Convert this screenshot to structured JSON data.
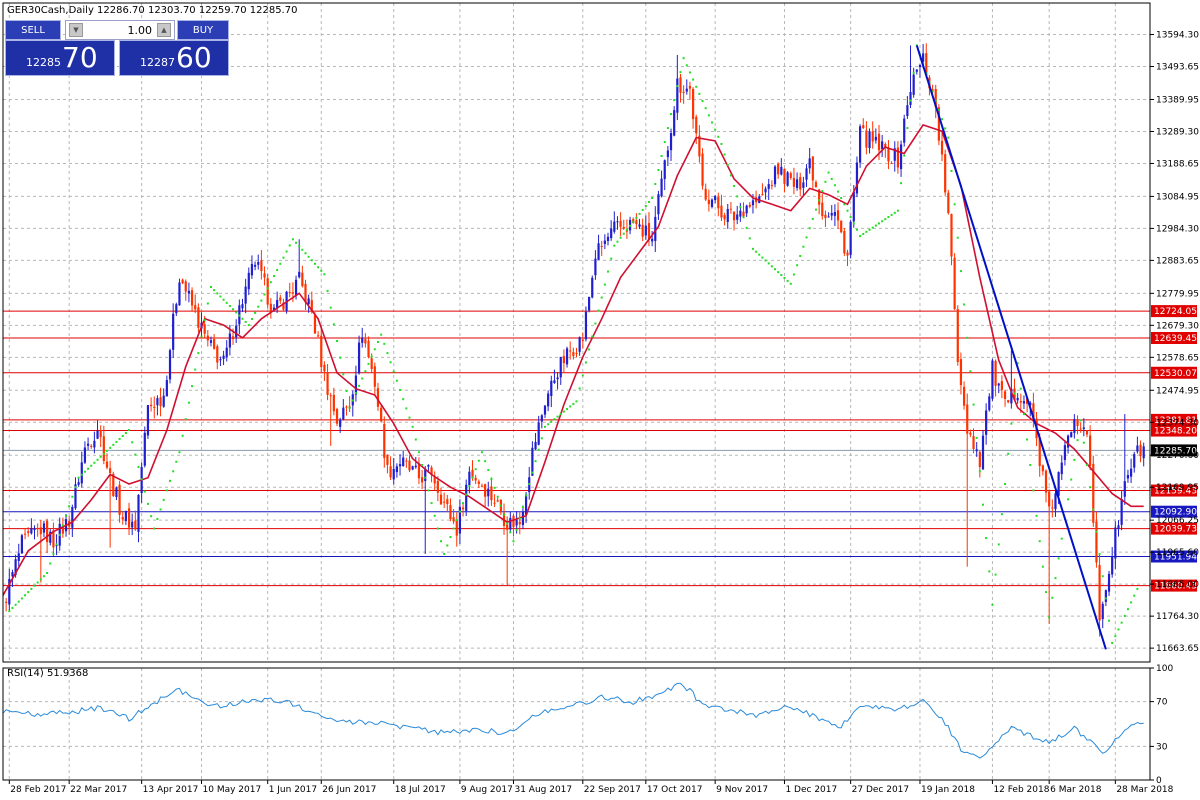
{
  "header": {
    "title": "GER30Cash,Daily  12286.70 12303.70 12259.70 12285.70"
  },
  "trade_panel": {
    "sell_label": "SELL",
    "buy_label": "BUY",
    "lot_value": "1.00",
    "up_arrow": "▲",
    "down_arrow": "▼",
    "sell_small": "12285",
    "sell_big": "70",
    "buy_small": "12287",
    "buy_big": "60"
  },
  "colors": {
    "bull": "#1f1fd0",
    "bear": "#ff3300",
    "ma": "#d01030",
    "trend": "#0010c8",
    "sar": "#22dd22",
    "rsi": "#2a8ad8",
    "hline_red": "#e00000",
    "hline_blue": "#1818c0"
  },
  "chart_data": [
    {
      "type": "candlestick",
      "title": "GER30Cash,Daily",
      "ylim": [
        11620,
        13640
      ],
      "y_ticks": [
        "13594.30",
        "13493.65",
        "13389.95",
        "13289.30",
        "13188.65",
        "13084.95",
        "12984.30",
        "12883.65",
        "12779.95",
        "12679.30",
        "12578.65",
        "12474.95",
        "12374.30",
        "12270.60",
        "12169.95",
        "12066.25",
        "11965.60",
        "11865.00",
        "11764.30",
        "11663.65"
      ],
      "x_labels": [
        "28 Feb 2017",
        "22 Mar 2017",
        "13 Apr 2017",
        "10 May 2017",
        "1 Jun 2017",
        "26 Jun 2017",
        "18 Jul 2017",
        "9 Aug 2017",
        "31 Aug 2017",
        "22 Sep 2017",
        "17 Oct 2017",
        "9 Nov 2017",
        "1 Dec 2017",
        "27 Dec 2017",
        "19 Jan 2018",
        "12 Feb 2018",
        "6 Mar 2018",
        "28 Mar 2018"
      ],
      "x_label_positions": [
        2,
        21,
        44,
        63,
        84,
        101,
        124,
        145,
        162,
        184,
        204,
        226,
        248,
        269,
        291,
        314,
        332,
        353
      ],
      "levels": [
        {
          "value": 12724.05,
          "label": "12724.05",
          "color": "red"
        },
        {
          "value": 12639.45,
          "label": "12639.45",
          "color": "red"
        },
        {
          "value": 12530.07,
          "label": "12530.07",
          "color": "red"
        },
        {
          "value": 12381.81,
          "label": "12381.81",
          "color": "red"
        },
        {
          "value": 12348.2,
          "label": "12348.20",
          "color": "red"
        },
        {
          "value": 12159.43,
          "label": "12159.43",
          "color": "red"
        },
        {
          "value": 12092.9,
          "label": "12092.90",
          "color": "blue"
        },
        {
          "value": 12039.73,
          "label": "12039.73",
          "color": "red"
        },
        {
          "value": 11951.94,
          "label": "11951.94",
          "color": "blue"
        },
        {
          "value": 11860.43,
          "label": "11860.43",
          "color": "red"
        }
      ],
      "current_price": {
        "value": 12285.7,
        "label": "12285.70"
      },
      "trendline": {
        "from": [
          290,
          13560
        ],
        "to": [
          350,
          11660
        ]
      },
      "close_path": [
        [
          0,
          11800
        ],
        [
          6,
          11990
        ],
        [
          12,
          12040
        ],
        [
          16,
          12000
        ],
        [
          21,
          12070
        ],
        [
          26,
          12290
        ],
        [
          30,
          12360
        ],
        [
          34,
          12200
        ],
        [
          38,
          12080
        ],
        [
          42,
          12050
        ],
        [
          46,
          12420
        ],
        [
          51,
          12460
        ],
        [
          56,
          12840
        ],
        [
          60,
          12740
        ],
        [
          65,
          12620
        ],
        [
          70,
          12560
        ],
        [
          74,
          12700
        ],
        [
          80,
          12880
        ],
        [
          86,
          12720
        ],
        [
          94,
          12820
        ],
        [
          98,
          12720
        ],
        [
          102,
          12520
        ],
        [
          106,
          12380
        ],
        [
          110,
          12430
        ],
        [
          114,
          12660
        ],
        [
          118,
          12500
        ],
        [
          122,
          12220
        ],
        [
          126,
          12250
        ],
        [
          132,
          12200
        ],
        [
          136,
          12220
        ],
        [
          140,
          12120
        ],
        [
          144,
          12040
        ],
        [
          148,
          12220
        ],
        [
          152,
          12180
        ],
        [
          156,
          12130
        ],
        [
          160,
          12060
        ],
        [
          164,
          12060
        ],
        [
          168,
          12280
        ],
        [
          172,
          12440
        ],
        [
          176,
          12540
        ],
        [
          180,
          12600
        ],
        [
          184,
          12640
        ],
        [
          188,
          12900
        ],
        [
          194,
          12980
        ],
        [
          200,
          13000
        ],
        [
          206,
          12950
        ],
        [
          210,
          13180
        ],
        [
          214,
          13440
        ],
        [
          218,
          13420
        ],
        [
          222,
          13110
        ],
        [
          228,
          13040
        ],
        [
          232,
          13020
        ],
        [
          236,
          13060
        ],
        [
          240,
          13070
        ],
        [
          246,
          13170
        ],
        [
          252,
          13110
        ],
        [
          256,
          13200
        ],
        [
          260,
          13040
        ],
        [
          264,
          13030
        ],
        [
          268,
          12900
        ],
        [
          272,
          13280
        ],
        [
          278,
          13240
        ],
        [
          284,
          13200
        ],
        [
          288,
          13430
        ],
        [
          292,
          13520
        ],
        [
          296,
          13370
        ],
        [
          300,
          13020
        ],
        [
          303,
          12580
        ],
        [
          306,
          12360
        ],
        [
          310,
          12260
        ],
        [
          314,
          12540
        ],
        [
          318,
          12420
        ],
        [
          322,
          12480
        ],
        [
          326,
          12420
        ],
        [
          328,
          12320
        ],
        [
          332,
          12080
        ],
        [
          336,
          12240
        ],
        [
          340,
          12400
        ],
        [
          344,
          12360
        ],
        [
          348,
          11760
        ],
        [
          352,
          11960
        ],
        [
          356,
          12180
        ],
        [
          360,
          12280
        ],
        [
          362,
          12286
        ]
      ],
      "ma_path": [
        [
          0,
          11830
        ],
        [
          8,
          11970
        ],
        [
          16,
          12030
        ],
        [
          22,
          12060
        ],
        [
          28,
          12130
        ],
        [
          34,
          12210
        ],
        [
          40,
          12180
        ],
        [
          46,
          12200
        ],
        [
          52,
          12350
        ],
        [
          58,
          12550
        ],
        [
          64,
          12700
        ],
        [
          70,
          12680
        ],
        [
          76,
          12640
        ],
        [
          82,
          12700
        ],
        [
          88,
          12740
        ],
        [
          94,
          12780
        ],
        [
          100,
          12700
        ],
        [
          106,
          12530
        ],
        [
          112,
          12480
        ],
        [
          118,
          12460
        ],
        [
          124,
          12370
        ],
        [
          130,
          12260
        ],
        [
          136,
          12210
        ],
        [
          142,
          12170
        ],
        [
          148,
          12140
        ],
        [
          154,
          12100
        ],
        [
          160,
          12060
        ],
        [
          166,
          12080
        ],
        [
          172,
          12250
        ],
        [
          178,
          12430
        ],
        [
          184,
          12580
        ],
        [
          190,
          12700
        ],
        [
          196,
          12830
        ],
        [
          202,
          12910
        ],
        [
          208,
          12990
        ],
        [
          214,
          13150
        ],
        [
          220,
          13270
        ],
        [
          226,
          13260
        ],
        [
          232,
          13140
        ],
        [
          238,
          13080
        ],
        [
          244,
          13060
        ],
        [
          250,
          13040
        ],
        [
          256,
          13110
        ],
        [
          262,
          13090
        ],
        [
          268,
          13060
        ],
        [
          274,
          13180
        ],
        [
          280,
          13240
        ],
        [
          286,
          13220
        ],
        [
          292,
          13310
        ],
        [
          298,
          13290
        ],
        [
          304,
          13120
        ],
        [
          310,
          12830
        ],
        [
          316,
          12570
        ],
        [
          322,
          12420
        ],
        [
          328,
          12370
        ],
        [
          334,
          12340
        ],
        [
          340,
          12290
        ],
        [
          346,
          12220
        ],
        [
          352,
          12150
        ],
        [
          358,
          12110
        ],
        [
          362,
          12110
        ]
      ],
      "sar_path": [
        [
          2,
          11780
        ],
        [
          14,
          11900
        ],
        [
          24,
          12200
        ],
        [
          40,
          12350
        ],
        [
          48,
          12040
        ],
        [
          56,
          12280
        ],
        [
          66,
          12800
        ],
        [
          78,
          12680
        ],
        [
          92,
          12950
        ],
        [
          102,
          12840
        ],
        [
          110,
          12420
        ],
        [
          120,
          12650
        ],
        [
          130,
          12360
        ],
        [
          140,
          11960
        ],
        [
          152,
          12280
        ],
        [
          162,
          12000
        ],
        [
          172,
          12360
        ],
        [
          182,
          12440
        ],
        [
          194,
          12930
        ],
        [
          206,
          13080
        ],
        [
          216,
          13520
        ],
        [
          228,
          13250
        ],
        [
          238,
          12920
        ],
        [
          250,
          12810
        ],
        [
          262,
          13160
        ],
        [
          272,
          12960
        ],
        [
          284,
          13040
        ],
        [
          290,
          13560
        ],
        [
          300,
          13270
        ],
        [
          314,
          11800
        ],
        [
          322,
          12560
        ],
        [
          332,
          11760
        ],
        [
          342,
          12380
        ],
        [
          352,
          11680
        ],
        [
          360,
          11850
        ]
      ],
      "low_spikes": [
        [
          12,
          11870
        ],
        [
          34,
          11980
        ],
        [
          52,
          12460
        ],
        [
          104,
          12300
        ],
        [
          134,
          11960
        ],
        [
          160,
          11860
        ],
        [
          306,
          11920
        ],
        [
          332,
          11740
        ],
        [
          348,
          11700
        ]
      ],
      "high_spikes": [
        [
          30,
          12380
        ],
        [
          94,
          12950
        ],
        [
          214,
          13530
        ],
        [
          288,
          13560
        ],
        [
          320,
          12600
        ],
        [
          356,
          12400
        ]
      ]
    },
    {
      "type": "line",
      "title": "RSI(14) 51.9368",
      "ylim": [
        0,
        100
      ],
      "y_ticks": [
        "100",
        "70",
        "30",
        "0"
      ],
      "y_tick_values": [
        100,
        70,
        30,
        0
      ],
      "rsi_path": [
        [
          0,
          62
        ],
        [
          10,
          58
        ],
        [
          20,
          60
        ],
        [
          30,
          64
        ],
        [
          40,
          55
        ],
        [
          50,
          72
        ],
        [
          56,
          80
        ],
        [
          62,
          70
        ],
        [
          70,
          66
        ],
        [
          80,
          72
        ],
        [
          90,
          70
        ],
        [
          100,
          58
        ],
        [
          110,
          52
        ],
        [
          120,
          50
        ],
        [
          130,
          46
        ],
        [
          140,
          42
        ],
        [
          150,
          45
        ],
        [
          160,
          42
        ],
        [
          170,
          60
        ],
        [
          180,
          66
        ],
        [
          190,
          74
        ],
        [
          200,
          70
        ],
        [
          210,
          78
        ],
        [
          214,
          86
        ],
        [
          218,
          80
        ],
        [
          222,
          66
        ],
        [
          230,
          62
        ],
        [
          240,
          58
        ],
        [
          250,
          66
        ],
        [
          260,
          54
        ],
        [
          266,
          48
        ],
        [
          272,
          68
        ],
        [
          282,
          62
        ],
        [
          292,
          70
        ],
        [
          298,
          56
        ],
        [
          304,
          28
        ],
        [
          310,
          18
        ],
        [
          316,
          36
        ],
        [
          320,
          46
        ],
        [
          326,
          40
        ],
        [
          332,
          34
        ],
        [
          340,
          46
        ],
        [
          346,
          32
        ],
        [
          350,
          24
        ],
        [
          356,
          46
        ],
        [
          362,
          52
        ]
      ]
    }
  ]
}
